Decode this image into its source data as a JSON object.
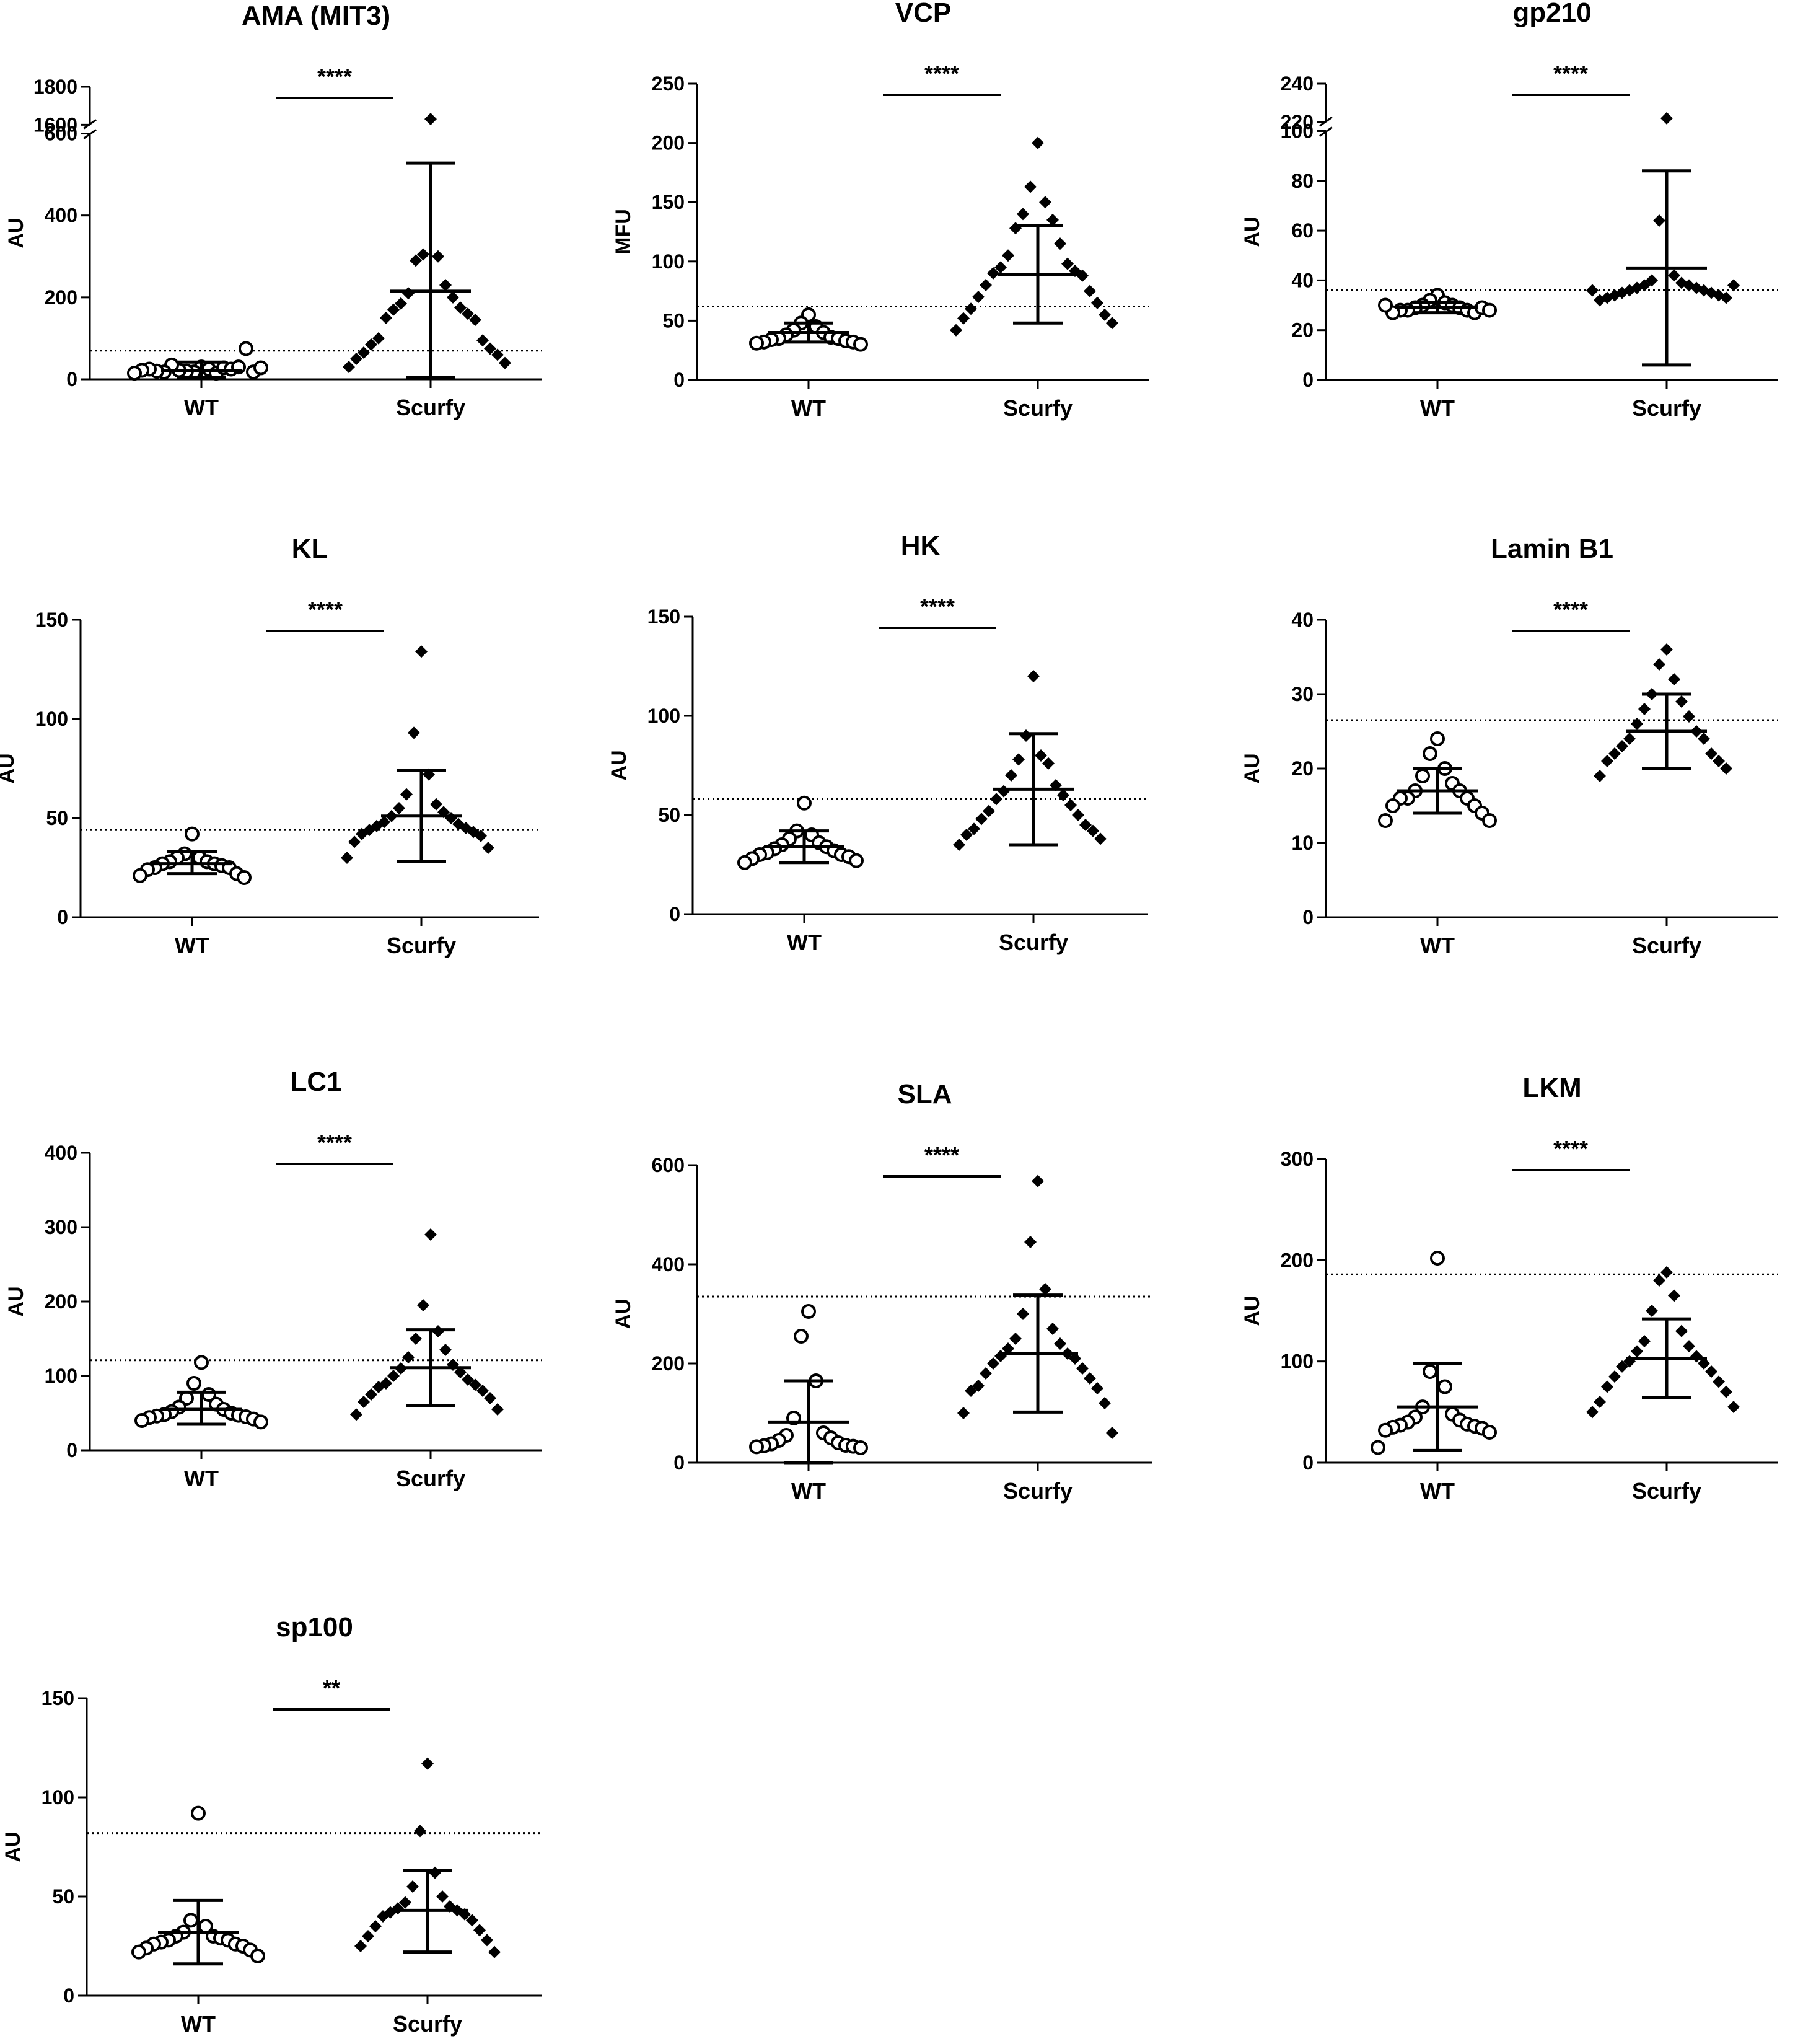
{
  "figure": {
    "groups": [
      "WT",
      "Scurfy"
    ]
  },
  "chart_data": [
    {
      "type": "scatter",
      "title": "AMA (MIT3)",
      "ylabel": "AU",
      "significance": "****",
      "categories": [
        "WT",
        "Scurfy"
      ],
      "ylim": [
        0,
        1800
      ],
      "axis_break": {
        "lower": [
          0,
          600
        ],
        "upper": [
          1600,
          1800
        ]
      },
      "yticks": [
        0,
        200,
        400,
        600,
        1600,
        1800
      ],
      "cutoff": 70,
      "series": [
        {
          "name": "WT",
          "marker": "open-circle",
          "mean": 22,
          "sd_low": 5,
          "sd_high": 42,
          "values": [
            30,
            18,
            25,
            20,
            15,
            22,
            28,
            35,
            25,
            18,
            30,
            20,
            75,
            25,
            18,
            22,
            28,
            15
          ]
        },
        {
          "name": "Scurfy",
          "marker": "diamond",
          "mean": 215,
          "sd_low": 5,
          "sd_high": 528,
          "values": [
            1630,
            305,
            300,
            290,
            230,
            210,
            200,
            185,
            175,
            170,
            160,
            150,
            145,
            100,
            95,
            85,
            75,
            65,
            60,
            50,
            40,
            30
          ]
        }
      ]
    },
    {
      "type": "scatter",
      "title": "VCP",
      "ylabel": "MFU",
      "significance": "****",
      "categories": [
        "WT",
        "Scurfy"
      ],
      "ylim": [
        0,
        250
      ],
      "yticks": [
        0,
        50,
        100,
        150,
        200,
        250
      ],
      "cutoff": 62,
      "series": [
        {
          "name": "WT",
          "marker": "open-circle",
          "mean": 40,
          "sd_low": 32,
          "sd_high": 48,
          "values": [
            55,
            48,
            45,
            42,
            40,
            38,
            36,
            35,
            35,
            34,
            33,
            32,
            32,
            31,
            30
          ]
        },
        {
          "name": "Scurfy",
          "marker": "diamond",
          "mean": 89,
          "sd_low": 48,
          "sd_high": 130,
          "values": [
            200,
            163,
            150,
            140,
            135,
            128,
            115,
            105,
            98,
            95,
            92,
            90,
            88,
            80,
            75,
            70,
            65,
            60,
            55,
            52,
            48,
            42
          ]
        }
      ]
    },
    {
      "type": "scatter",
      "title": "gp210",
      "ylabel": "AU",
      "significance": "****",
      "categories": [
        "WT",
        "Scurfy"
      ],
      "ylim": [
        0,
        240
      ],
      "axis_break": {
        "lower": [
          0,
          100
        ],
        "upper": [
          220,
          240
        ]
      },
      "yticks": [
        0,
        20,
        40,
        60,
        80,
        100,
        220,
        240
      ],
      "cutoff": 36,
      "series": [
        {
          "name": "WT",
          "marker": "open-circle",
          "mean": 29,
          "sd_low": 27,
          "sd_high": 31,
          "values": [
            34,
            32,
            31,
            30,
            30,
            29,
            29,
            28,
            28,
            28,
            27,
            27,
            29,
            30,
            28
          ]
        },
        {
          "name": "Scurfy",
          "marker": "diamond",
          "mean": 45,
          "sd_low": 6,
          "sd_high": 84,
          "values": [
            222,
            64,
            42,
            40,
            39,
            38,
            38,
            37,
            37,
            36,
            36,
            35,
            35,
            34,
            34,
            33,
            33,
            32,
            38,
            36
          ]
        }
      ]
    },
    {
      "type": "scatter",
      "title": "KL",
      "ylabel": "AU",
      "significance": "****",
      "categories": [
        "WT",
        "Scurfy"
      ],
      "ylim": [
        0,
        150
      ],
      "yticks": [
        0,
        50,
        100,
        150
      ],
      "cutoff": 44,
      "series": [
        {
          "name": "WT",
          "marker": "open-circle",
          "mean": 27,
          "sd_low": 22,
          "sd_high": 33,
          "values": [
            42,
            32,
            30,
            30,
            28,
            28,
            27,
            27,
            26,
            25,
            25,
            24,
            22,
            21,
            20
          ]
        },
        {
          "name": "Scurfy",
          "marker": "diamond",
          "mean": 51,
          "sd_low": 28,
          "sd_high": 74,
          "values": [
            134,
            93,
            72,
            62,
            57,
            55,
            53,
            51,
            50,
            48,
            47,
            46,
            45,
            44,
            43,
            42,
            41,
            38,
            35,
            30
          ]
        }
      ]
    },
    {
      "type": "scatter",
      "title": "HK",
      "ylabel": "AU",
      "significance": "****",
      "categories": [
        "WT",
        "Scurfy"
      ],
      "ylim": [
        0,
        150
      ],
      "yticks": [
        0,
        50,
        100,
        150
      ],
      "cutoff": 58,
      "series": [
        {
          "name": "WT",
          "marker": "open-circle",
          "mean": 34,
          "sd_low": 26,
          "sd_high": 42,
          "values": [
            56,
            42,
            40,
            38,
            36,
            35,
            34,
            33,
            32,
            31,
            30,
            30,
            29,
            28,
            27,
            26
          ]
        },
        {
          "name": "Scurfy",
          "marker": "diamond",
          "mean": 63,
          "sd_low": 35,
          "sd_high": 91,
          "values": [
            120,
            90,
            80,
            78,
            76,
            70,
            65,
            62,
            60,
            58,
            55,
            52,
            50,
            48,
            45,
            43,
            42,
            40,
            38,
            35
          ]
        }
      ]
    },
    {
      "type": "scatter",
      "title": "Lamin B1",
      "ylabel": "AU",
      "significance": "****",
      "categories": [
        "WT",
        "Scurfy"
      ],
      "ylim": [
        0,
        40
      ],
      "yticks": [
        0,
        10,
        20,
        30,
        40
      ],
      "cutoff": 26.5,
      "series": [
        {
          "name": "WT",
          "marker": "open-circle",
          "mean": 17,
          "sd_low": 14,
          "sd_high": 20,
          "values": [
            24,
            22,
            20,
            19,
            18,
            17,
            17,
            16,
            16,
            16,
            15,
            15,
            14,
            13,
            13
          ]
        },
        {
          "name": "Scurfy",
          "marker": "diamond",
          "mean": 25,
          "sd_low": 20,
          "sd_high": 30,
          "values": [
            36,
            34,
            32,
            30,
            29,
            28,
            27,
            26,
            25,
            24,
            24,
            23,
            22,
            22,
            21,
            21,
            20,
            19
          ]
        }
      ]
    },
    {
      "type": "scatter",
      "title": "LC1",
      "ylabel": "AU",
      "significance": "****",
      "categories": [
        "WT",
        "Scurfy"
      ],
      "ylim": [
        0,
        400
      ],
      "yticks": [
        0,
        100,
        200,
        300,
        400
      ],
      "cutoff": 121,
      "series": [
        {
          "name": "WT",
          "marker": "open-circle",
          "mean": 55,
          "sd_low": 35,
          "sd_high": 78,
          "values": [
            118,
            90,
            75,
            70,
            62,
            58,
            55,
            52,
            50,
            48,
            47,
            46,
            45,
            44,
            42,
            40,
            38
          ]
        },
        {
          "name": "Scurfy",
          "marker": "diamond",
          "mean": 111,
          "sd_low": 60,
          "sd_high": 162,
          "values": [
            290,
            195,
            160,
            150,
            135,
            125,
            115,
            110,
            105,
            100,
            95,
            90,
            88,
            85,
            80,
            75,
            70,
            65,
            55,
            48
          ]
        }
      ]
    },
    {
      "type": "scatter",
      "title": "SLA",
      "ylabel": "AU",
      "significance": "****",
      "categories": [
        "WT",
        "Scurfy"
      ],
      "ylim": [
        0,
        600
      ],
      "yticks": [
        0,
        200,
        400,
        600
      ],
      "cutoff": 335,
      "series": [
        {
          "name": "WT",
          "marker": "open-circle",
          "mean": 82,
          "sd_low": 0,
          "sd_high": 165,
          "values": [
            305,
            255,
            165,
            90,
            60,
            55,
            50,
            45,
            40,
            38,
            35,
            34,
            33,
            32,
            30
          ]
        },
        {
          "name": "Scurfy",
          "marker": "diamond",
          "mean": 220,
          "sd_low": 102,
          "sd_high": 338,
          "values": [
            568,
            445,
            350,
            300,
            270,
            250,
            240,
            230,
            220,
            215,
            210,
            200,
            190,
            180,
            170,
            155,
            150,
            145,
            120,
            100,
            60
          ]
        }
      ]
    },
    {
      "type": "scatter",
      "title": "LKM",
      "ylabel": "AU",
      "significance": "****",
      "categories": [
        "WT",
        "Scurfy"
      ],
      "ylim": [
        0,
        300
      ],
      "yticks": [
        0,
        100,
        200,
        300
      ],
      "cutoff": 186,
      "series": [
        {
          "name": "WT",
          "marker": "open-circle",
          "mean": 55,
          "sd_low": 12,
          "sd_high": 98,
          "values": [
            202,
            90,
            75,
            55,
            48,
            45,
            42,
            40,
            38,
            37,
            36,
            35,
            34,
            32,
            30,
            15
          ]
        },
        {
          "name": "Scurfy",
          "marker": "diamond",
          "mean": 103,
          "sd_low": 64,
          "sd_high": 142,
          "values": [
            188,
            180,
            165,
            150,
            130,
            120,
            115,
            110,
            105,
            100,
            98,
            95,
            90,
            85,
            80,
            75,
            70,
            60,
            55,
            50
          ]
        }
      ]
    },
    {
      "type": "scatter",
      "title": "sp100",
      "ylabel": "AU",
      "significance": "**",
      "categories": [
        "WT",
        "Scurfy"
      ],
      "ylim": [
        0,
        150
      ],
      "yticks": [
        0,
        50,
        100,
        150
      ],
      "cutoff": 82,
      "series": [
        {
          "name": "WT",
          "marker": "open-circle",
          "mean": 32,
          "sd_low": 16,
          "sd_high": 48,
          "values": [
            92,
            38,
            35,
            32,
            30,
            30,
            29,
            28,
            28,
            27,
            26,
            26,
            25,
            24,
            23,
            22,
            20
          ]
        },
        {
          "name": "Scurfy",
          "marker": "diamond",
          "mean": 43,
          "sd_low": 22,
          "sd_high": 63,
          "values": [
            117,
            83,
            62,
            55,
            50,
            47,
            45,
            44,
            43,
            42,
            41,
            40,
            38,
            35,
            33,
            30,
            28,
            25,
            22
          ]
        }
      ]
    }
  ]
}
